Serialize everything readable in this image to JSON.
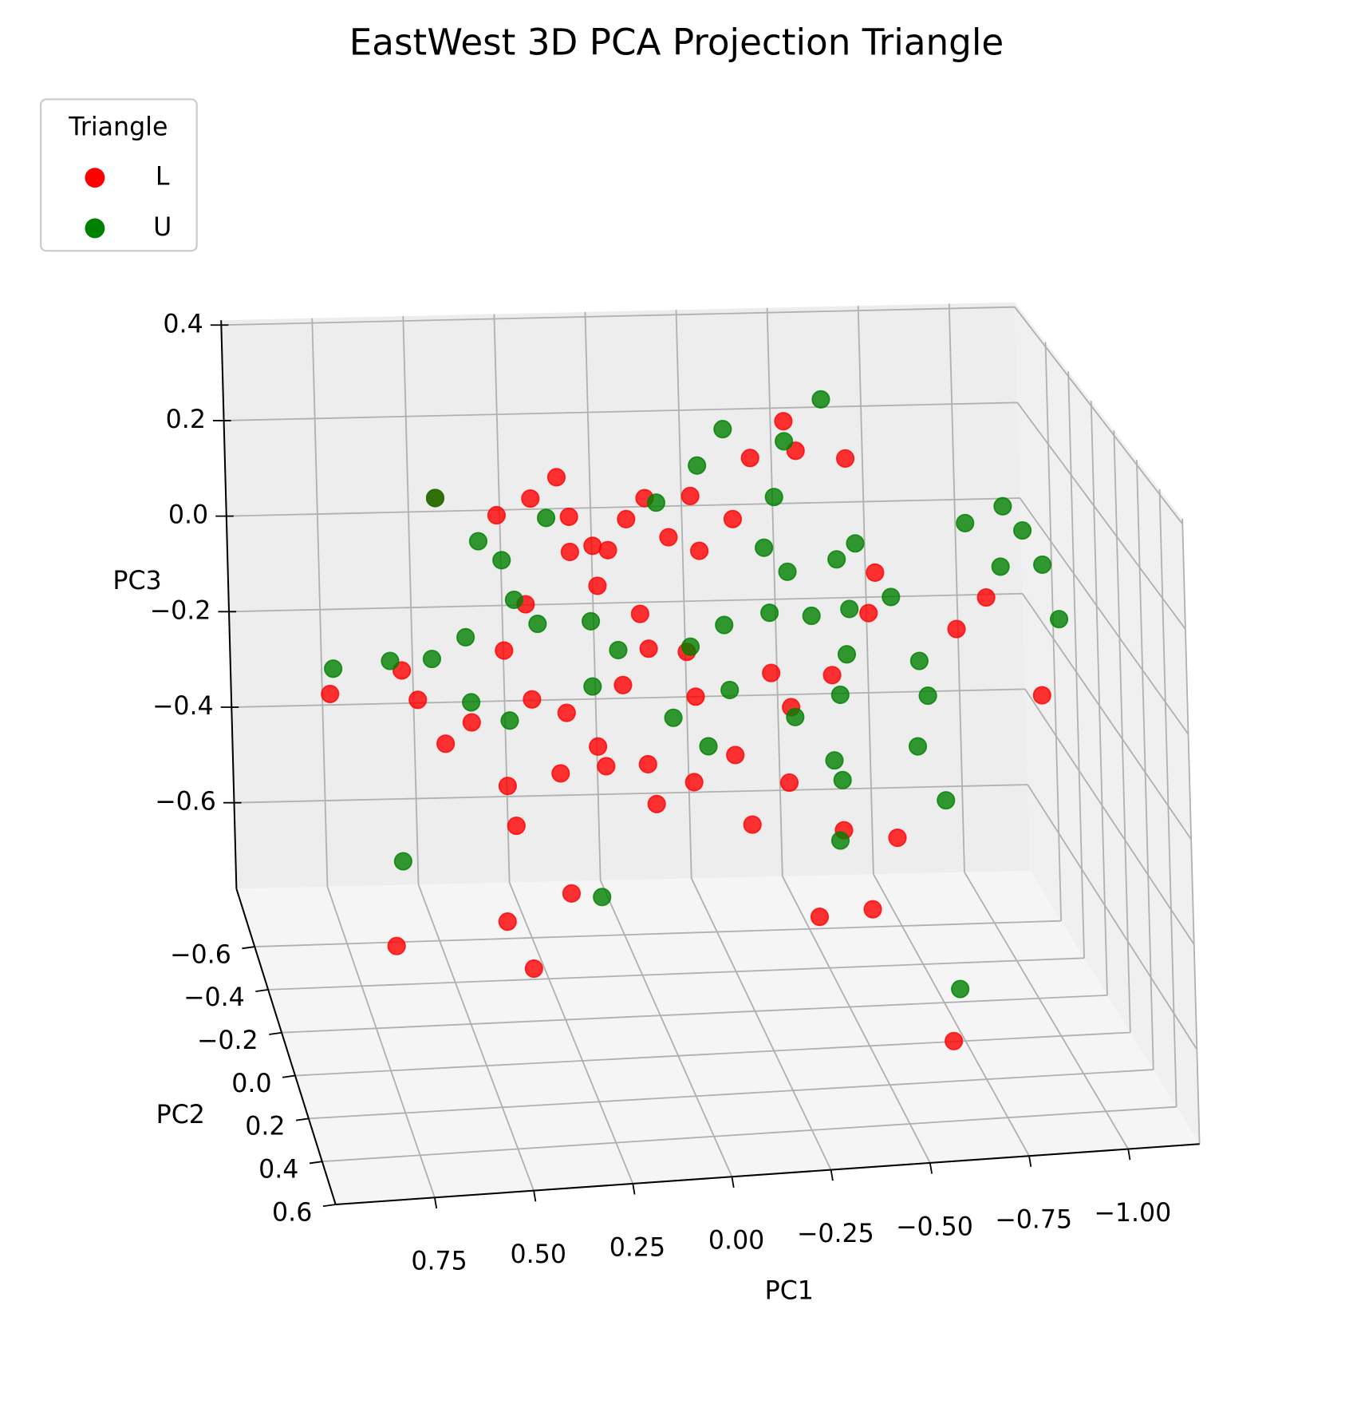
{
  "chart_data": {
    "type": "scatter3d",
    "title": "EastWest 3D PCA Projection Triangle",
    "xlabel": "PC1",
    "ylabel": "PC2",
    "zlabel": "PC3",
    "legend_title": "Triangle",
    "legend": "upper left",
    "grid": true,
    "xlim": [
      1.0,
      -1.18
    ],
    "ylim": [
      0.6,
      -0.87
    ],
    "zlim": [
      -0.78,
      0.41
    ],
    "xticks": [
      {
        "value": 0.75,
        "label": "0.75"
      },
      {
        "value": 0.5,
        "label": "0.50"
      },
      {
        "value": 0.25,
        "label": "0.25"
      },
      {
        "value": 0,
        "label": "0.00"
      },
      {
        "value": -0.25,
        "label": "−0.25"
      },
      {
        "value": -0.5,
        "label": "−0.50"
      },
      {
        "value": -0.75,
        "label": "−0.75"
      },
      {
        "value": -1,
        "label": "−1.00"
      }
    ],
    "yticks": [
      {
        "value": -0.6,
        "label": "−0.6"
      },
      {
        "value": -0.4,
        "label": "−0.4"
      },
      {
        "value": -0.2,
        "label": "−0.2"
      },
      {
        "value": 0,
        "label": "0.0"
      },
      0.2,
      0.4,
      0.6
    ],
    "zticks": [
      {
        "value": -0.6,
        "label": "−0.6"
      },
      {
        "value": -0.4,
        "label": "−0.4"
      },
      {
        "value": -0.2,
        "label": "−0.2"
      },
      {
        "value": 0,
        "label": "0.0"
      },
      0.2,
      0.4
    ],
    "series": [
      {
        "name": "L",
        "color": "#ff0000",
        "x": [
          -0.35,
          -0.38,
          -0.51,
          -0.26,
          0.25,
          0.57,
          0.32,
          0.02,
          -0.1,
          0.41,
          0.22,
          -0.21,
          0.16,
          0.07,
          0.12,
          -0.04,
          -0.12,
          0.22,
          -0.58,
          -0.87,
          -0.79,
          -1.01,
          -0.56,
          0.15,
          0.04,
          0.34,
          0.4,
          0.02,
          -0.08,
          -0.3,
          -0.46,
          0.67,
          0.86,
          0.63,
          0.49,
          0.56,
          0.33,
          0.24,
          0.09,
          -0.1,
          -0.35,
          0.16,
          0.14,
          0.26,
          0.03,
          -0.09,
          -0.2,
          -0.34,
          0.4,
          0.38,
          0.01,
          -0.24,
          -0.48,
          -0.62,
          0.24,
          0.41,
          -0.41,
          -0.55,
          0.78,
          0.43,
          -0.64
        ],
        "y": [
          -0.13,
          -0.13,
          -0.13,
          -0.13,
          -0.13,
          -0.13,
          -0.13,
          -0.13,
          -0.13,
          -0.13,
          -0.13,
          -0.13,
          -0.13,
          -0.13,
          -0.13,
          -0.13,
          -0.13,
          -0.13,
          -0.13,
          -0.13,
          -0.13,
          -0.13,
          -0.13,
          -0.13,
          -0.13,
          -0.13,
          -0.13,
          -0.13,
          -0.13,
          -0.13,
          -0.13,
          -0.13,
          -0.13,
          -0.13,
          -0.13,
          -0.13,
          -0.13,
          -0.13,
          -0.13,
          -0.13,
          -0.13,
          -0.13,
          -0.13,
          -0.13,
          -0.13,
          -0.13,
          -0.13,
          -0.13,
          -0.13,
          -0.13,
          -0.13,
          -0.13,
          -0.13,
          -0.13,
          -0.13,
          -0.13,
          -0.13,
          -0.13,
          0.31,
          0.31,
          0.31
        ],
        "z": [
          0.42,
          0.36,
          0.34,
          0.35,
          0.33,
          0.3,
          0.29,
          0.28,
          0.28,
          0.26,
          0.25,
          0.23,
          0.19,
          0.24,
          0.18,
          0.2,
          0.17,
          0.18,
          0.11,
          0.05,
          -0.01,
          -0.15,
          0.03,
          0.11,
          0.05,
          0.08,
          -0.01,
          -0.02,
          -0.03,
          -0.08,
          -0.09,
          -0.04,
          -0.08,
          -0.1,
          -0.15,
          -0.19,
          -0.11,
          -0.14,
          -0.09,
          -0.12,
          -0.15,
          -0.21,
          -0.25,
          -0.26,
          -0.25,
          -0.29,
          -0.24,
          -0.3,
          -0.28,
          -0.36,
          -0.33,
          -0.38,
          -0.4,
          -0.42,
          -0.5,
          -0.55,
          -0.57,
          -0.56,
          -0.41,
          -0.47,
          -0.66
        ]
      },
      {
        "name": "U",
        "color": "#008000",
        "x": [
          -0.45,
          -0.19,
          -0.35,
          -0.12,
          0.57,
          -0.32,
          -0.01,
          0.28,
          -0.92,
          -0.82,
          -0.97,
          0.46,
          -0.29,
          -0.53,
          0.4,
          -0.91,
          -1.02,
          -0.48,
          -0.35,
          0.37,
          -1.06,
          -0.62,
          -0.51,
          -0.41,
          -0.3,
          0.5,
          0.59,
          0.85,
          0.7,
          0.31,
          0.17,
          0.1,
          -0.09,
          -0.18,
          -0.5,
          -0.69,
          -0.71,
          -0.48,
          -0.19,
          0.49,
          0.39,
          0.17,
          -0.04,
          -0.13,
          -0.36,
          -0.68,
          -0.46,
          -0.48,
          -0.75,
          -0.47,
          0.68,
          0.16,
          -0.66
        ],
        "y": [
          -0.13,
          -0.13,
          -0.13,
          -0.13,
          -0.13,
          -0.13,
          -0.13,
          -0.13,
          -0.13,
          -0.13,
          -0.13,
          -0.13,
          -0.13,
          -0.13,
          -0.13,
          -0.13,
          -0.13,
          -0.13,
          -0.13,
          -0.13,
          -0.13,
          -0.13,
          -0.13,
          -0.13,
          -0.13,
          -0.13,
          -0.13,
          -0.13,
          -0.13,
          -0.13,
          -0.13,
          -0.13,
          -0.13,
          -0.13,
          -0.13,
          -0.13,
          -0.13,
          -0.13,
          -0.13,
          -0.13,
          -0.13,
          -0.13,
          -0.13,
          -0.13,
          -0.13,
          -0.13,
          -0.13,
          -0.13,
          -0.13,
          -0.13,
          -0.13,
          -0.13,
          0.31
        ],
        "z": [
          0.46,
          0.41,
          0.38,
          0.34,
          0.3,
          0.27,
          0.27,
          0.25,
          0.23,
          0.2,
          0.18,
          0.21,
          0.17,
          0.17,
          0.17,
          0.11,
          0.11,
          0.14,
          0.12,
          0.09,
          0.0,
          0.06,
          0.04,
          0.03,
          0.04,
          0.02,
          -0.02,
          -0.03,
          -0.02,
          0.04,
          0.04,
          -0.02,
          -0.02,
          0.02,
          -0.05,
          -0.07,
          -0.14,
          -0.13,
          -0.11,
          -0.11,
          -0.15,
          -0.09,
          -0.16,
          -0.22,
          -0.17,
          -0.24,
          -0.26,
          -0.3,
          -0.35,
          -0.42,
          -0.42,
          -0.51,
          -0.56
        ]
      }
    ]
  }
}
